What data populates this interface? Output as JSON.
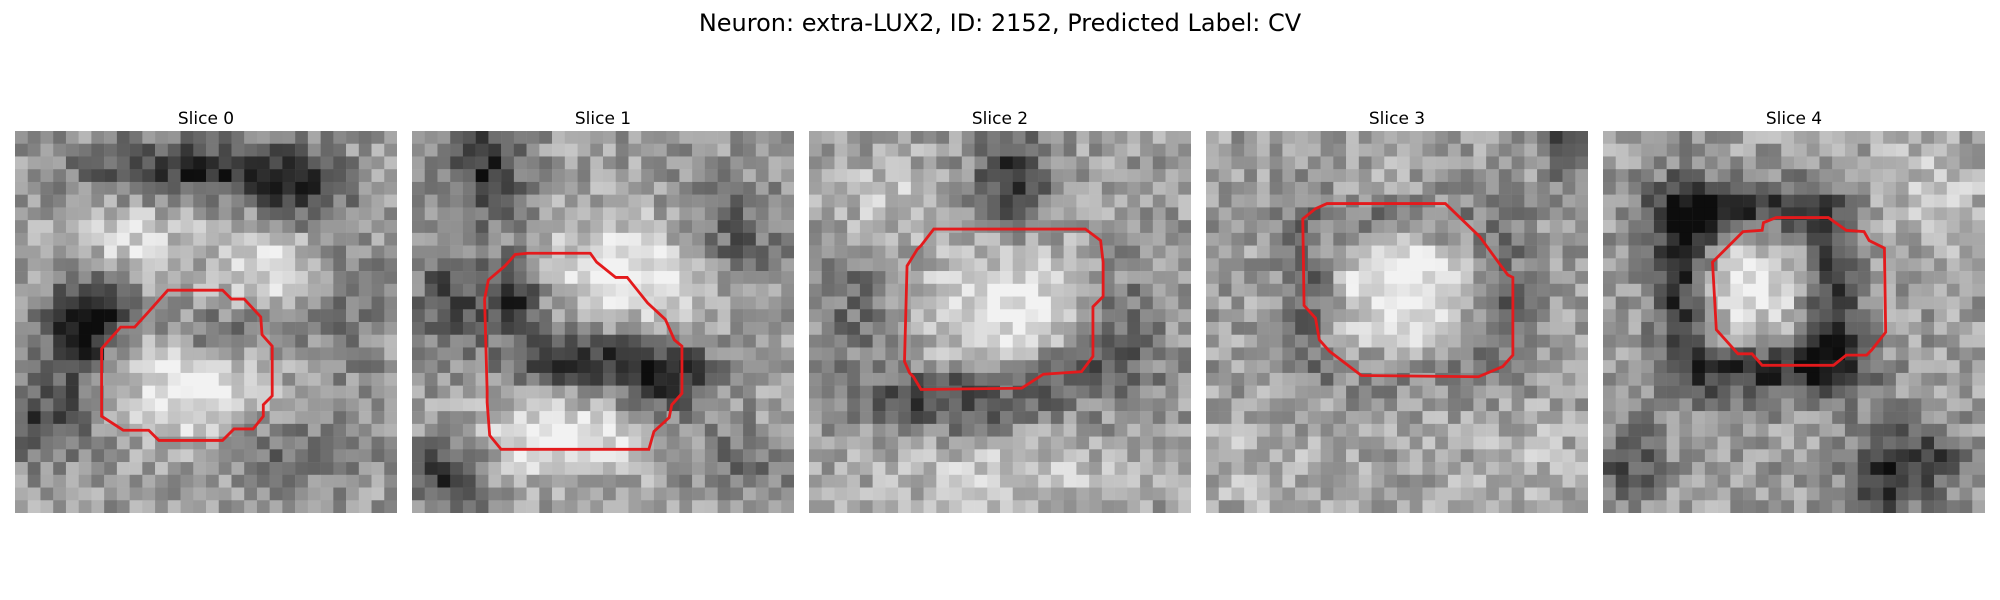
{
  "figure": {
    "title": "Neuron: extra-LUX2, ID: 2152, Predicted Label: CV"
  },
  "colors": {
    "contour": "#e41a1c",
    "background": "#ffffff"
  },
  "panels": [
    {
      "title": "Slice 0"
    },
    {
      "title": "Slice 1"
    },
    {
      "title": "Slice 2"
    },
    {
      "title": "Slice 3"
    },
    {
      "title": "Slice 4"
    }
  ]
}
